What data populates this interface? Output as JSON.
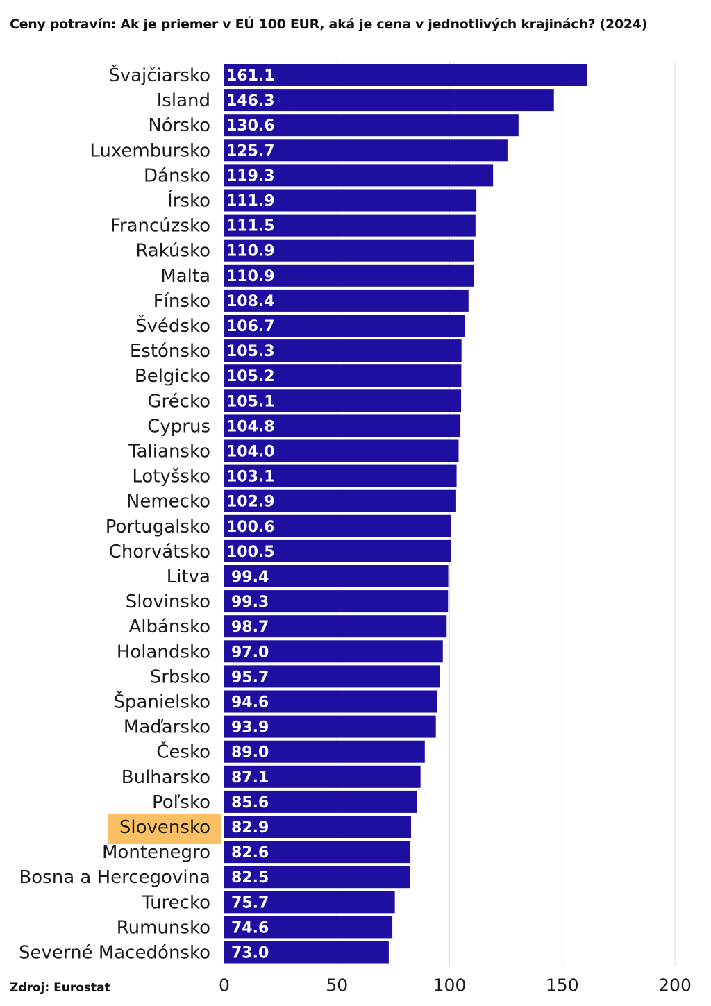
{
  "chart_data": {
    "type": "bar",
    "orientation": "horizontal",
    "title": "Ceny potravín: Ak je priemer v EÚ 100 EUR, aká je cena v jednotlivých krajinách? (2024)",
    "source": "Zdroj: Eurostat",
    "categories": [
      "Švajčiarsko",
      "Island",
      "Nórsko",
      "Luxembursko",
      "Dánsko",
      "Írsko",
      "Francúzsko",
      "Rakúsko",
      "Malta",
      "Fínsko",
      "Švédsko",
      "Estónsko",
      "Belgicko",
      "Grécko",
      "Cyprus",
      "Taliansko",
      "Lotyšsko",
      "Nemecko",
      "Portugalsko",
      "Chorvátsko",
      "Litva",
      "Slovinsko",
      "Albánsko",
      "Holandsko",
      "Srbsko",
      "Španielsko",
      "Maďarsko",
      "Česko",
      "Bulharsko",
      "Poľsko",
      "Slovensko",
      "Montenegro",
      "Bosna a Hercegovina",
      "Turecko",
      "Rumunsko",
      "Severné Macedónsko"
    ],
    "values": [
      161.1,
      146.3,
      130.6,
      125.7,
      119.3,
      111.9,
      111.5,
      110.9,
      110.9,
      108.4,
      106.7,
      105.3,
      105.2,
      105.1,
      104.8,
      104.0,
      103.1,
      102.9,
      100.6,
      100.5,
      99.4,
      99.3,
      98.7,
      97.0,
      95.7,
      94.6,
      93.9,
      89.0,
      87.1,
      85.6,
      82.9,
      82.6,
      82.5,
      75.7,
      74.6,
      73.0
    ],
    "value_labels": [
      "161.1",
      "146.3",
      "130.6",
      "125.7",
      "119.3",
      "111.9",
      "111.5",
      "110.9",
      "110.9",
      "108.4",
      "106.7",
      "105.3",
      "105.2",
      "105.1",
      "104.8",
      "104.0",
      "103.1",
      "102.9",
      "100.6",
      "100.5",
      "99.4",
      "99.3",
      "98.7",
      "97.0",
      "95.7",
      "94.6",
      "93.9",
      "89.0",
      "87.1",
      "85.6",
      "82.9",
      "82.6",
      "82.5",
      "75.7",
      "74.6",
      "73.0"
    ],
    "highlight": "Slovensko",
    "xlim": [
      0,
      200
    ],
    "xticks": [
      0,
      50,
      100,
      150,
      200
    ],
    "xlabel": "",
    "ylabel": "",
    "grid": true,
    "legend": "none"
  },
  "colors": {
    "bar": "#1e0fa0",
    "highlight_label_bg": "#fbbf64",
    "grid": "#dddddd"
  }
}
